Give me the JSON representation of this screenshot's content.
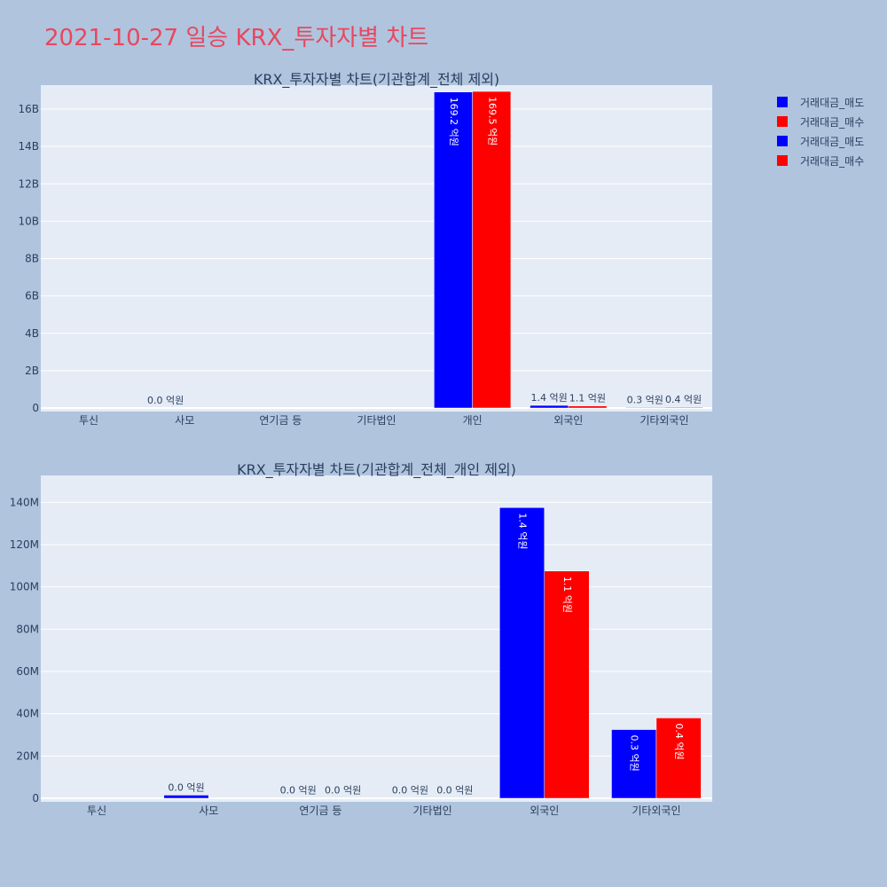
{
  "page_title": "2021-10-27 일승 KRX_투자자별 차트",
  "legend": [
    {
      "label": "거래대금_매도",
      "color": "#0000ff"
    },
    {
      "label": "거래대금_매수",
      "color": "#ff0000"
    },
    {
      "label": "거래대금_매도",
      "color": "#0000ff"
    },
    {
      "label": "거래대금_매수",
      "color": "#ff0000"
    }
  ],
  "chart_data": [
    {
      "type": "bar",
      "title": "KRX_투자자별 차트(기관합계_전체 제외)",
      "categories": [
        "투신",
        "사모",
        "연기금 등",
        "기타법인",
        "개인",
        "외국인",
        "기타외국인"
      ],
      "ylim": [
        0,
        17000000000
      ],
      "yticks": [
        0,
        2000000000,
        4000000000,
        6000000000,
        8000000000,
        10000000000,
        12000000000,
        14000000000,
        16000000000
      ],
      "yticklabels": [
        "0",
        "2B",
        "4B",
        "6B",
        "8B",
        "10B",
        "12B",
        "14B",
        "16B"
      ],
      "grid": true,
      "series": [
        {
          "name": "거래대금_매도",
          "color": "#0000ff",
          "values": [
            0,
            0,
            0,
            0,
            16920000000,
            140000000,
            30000000
          ],
          "labels": [
            "",
            "0.0 억원",
            "",
            "",
            "169.2 억원",
            "1.4 억원",
            "0.3 억원"
          ]
        },
        {
          "name": "거래대금_매수",
          "color": "#ff0000",
          "values": [
            0,
            0,
            0,
            0,
            16950000000,
            110000000,
            40000000
          ],
          "labels": [
            "",
            "",
            "",
            "",
            "169.5 억원",
            "1.1 억원",
            "0.4 억원"
          ]
        }
      ]
    },
    {
      "type": "bar",
      "title": "KRX_투자자별 차트(기관합계_전체_개인 제외)",
      "categories": [
        "투신",
        "사모",
        "연기금 등",
        "기타법인",
        "외국인",
        "기타외국인"
      ],
      "ylim": [
        0,
        146000000
      ],
      "yticks": [
        0,
        20000000,
        40000000,
        60000000,
        80000000,
        100000000,
        120000000,
        140000000
      ],
      "yticklabels": [
        "0",
        "20M",
        "40M",
        "60M",
        "80M",
        "100M",
        "120M",
        "140M"
      ],
      "grid": true,
      "series": [
        {
          "name": "거래대금_매도",
          "color": "#0000ff",
          "values": [
            0,
            1500000,
            200000,
            200000,
            137500000,
            32500000
          ],
          "labels": [
            "",
            "0.0 억원",
            "0.0 억원",
            "0.0 억원",
            "1.4 억원",
            "0.3 억원"
          ]
        },
        {
          "name": "거래대금_매수",
          "color": "#ff0000",
          "values": [
            0,
            0,
            200000,
            200000,
            107500000,
            38000000
          ],
          "labels": [
            "",
            "",
            "0.0 억원",
            "0.0 억원",
            "1.1 억원",
            "0.4 억원"
          ]
        }
      ]
    }
  ]
}
